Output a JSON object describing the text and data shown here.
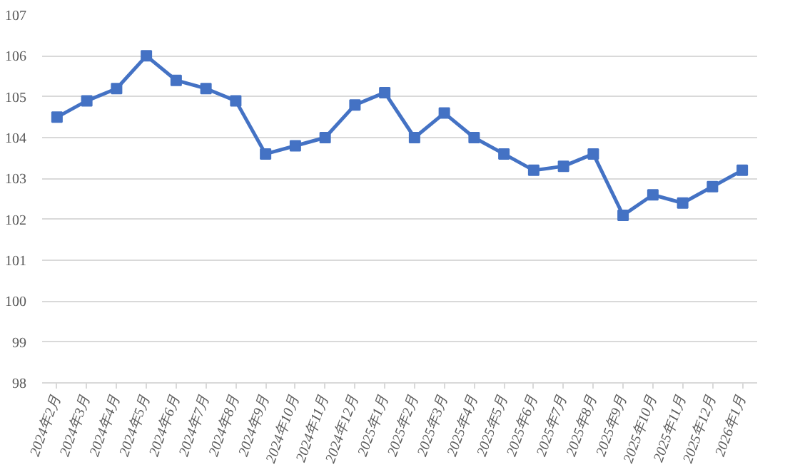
{
  "chart_data": {
    "type": "line",
    "categories": [
      "2024年2月",
      "2024年3月",
      "2024年4月",
      "2024年5月",
      "2024年6月",
      "2024年7月",
      "2024年8月",
      "2024年9月",
      "2024年10月",
      "2024年11月",
      "2024年12月",
      "2025年1月",
      "2025年2月",
      "2025年3月",
      "2025年4月",
      "2025年5月",
      "2025年6月",
      "2025年7月",
      "2025年8月",
      "2025年9月",
      "2025年10月",
      "2025年11月",
      "2025年12月",
      "2026年1月"
    ],
    "series": [
      {
        "color": "#4472c4",
        "values": [
          104.5,
          104.9,
          105.2,
          106.0,
          105.4,
          105.2,
          104.9,
          103.6,
          103.8,
          104.0,
          104.8,
          105.1,
          104.0,
          104.6,
          104.0,
          103.6,
          103.2,
          103.3,
          103.6,
          102.1,
          102.6,
          102.4,
          102.8,
          103.2
        ]
      }
    ],
    "ylim": [
      98,
      107
    ],
    "yticks": [
      98,
      99,
      100,
      101,
      102,
      103,
      104,
      105,
      106,
      107
    ],
    "grid": "y",
    "marker": "square",
    "line_style": "solid"
  }
}
